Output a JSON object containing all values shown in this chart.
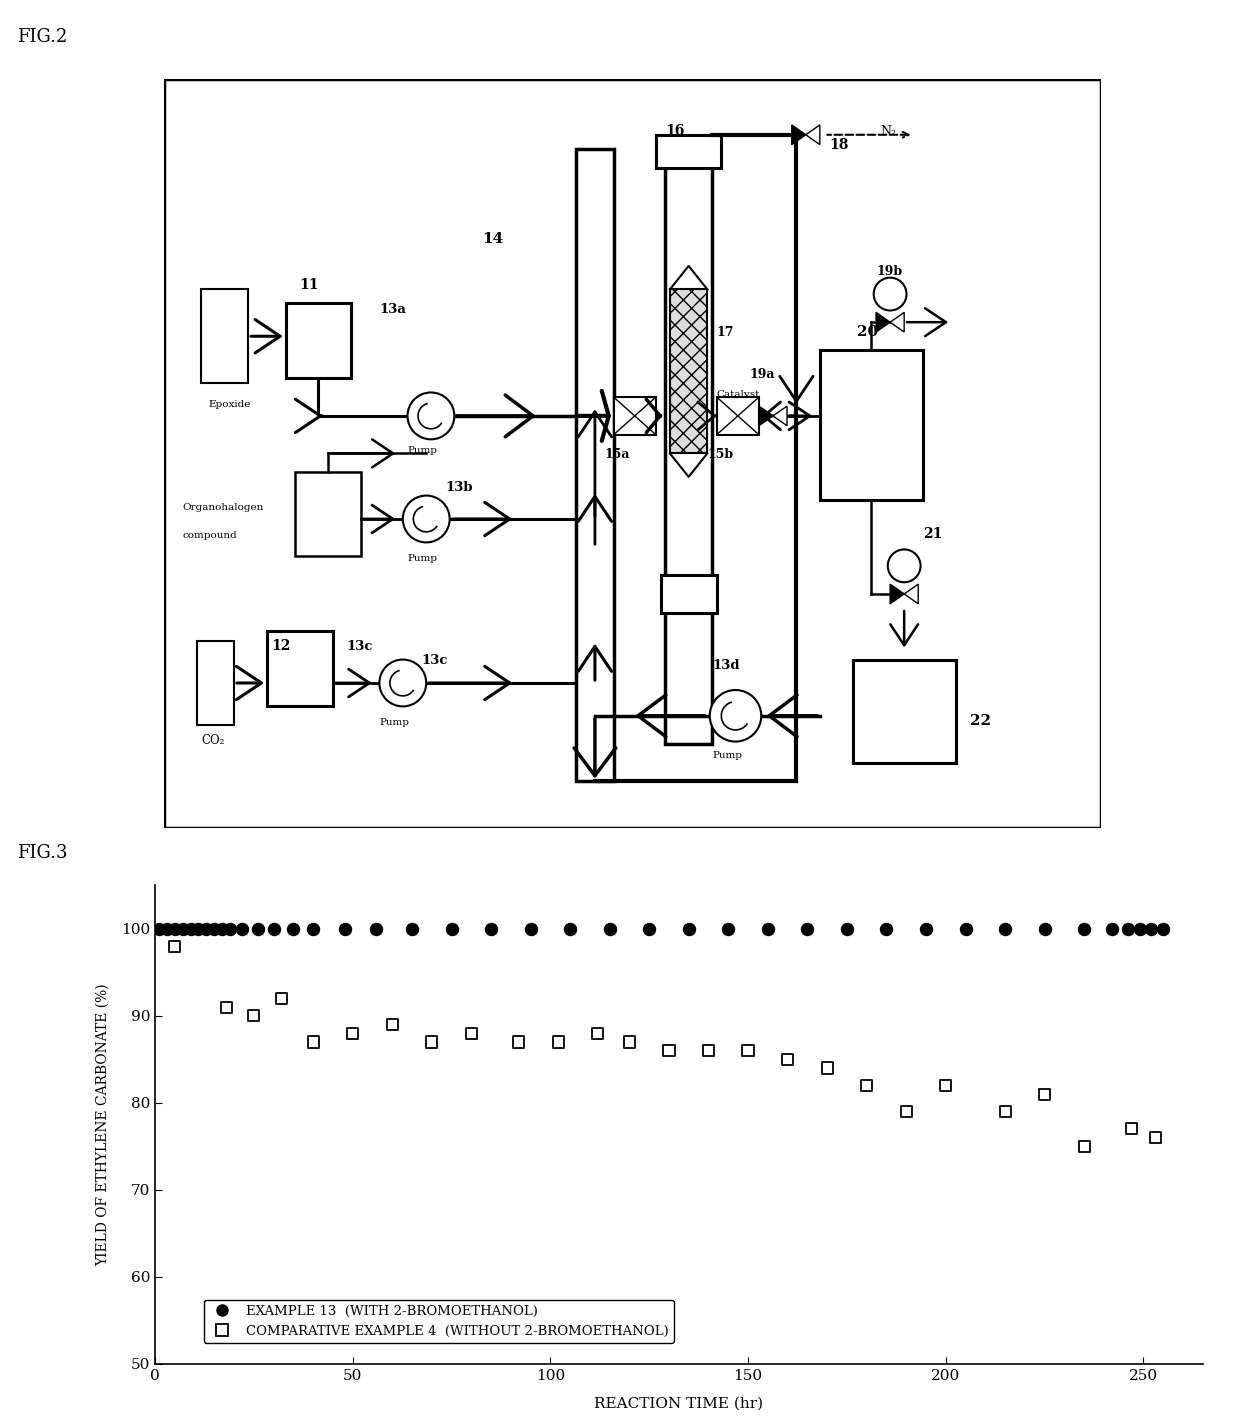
{
  "fig2_title": "FIG.2",
  "fig3_title": "FIG.3",
  "example13_x": [
    1,
    3,
    5,
    7,
    9,
    11,
    13,
    15,
    17,
    19,
    22,
    26,
    30,
    35,
    40,
    48,
    56,
    65,
    75,
    85,
    95,
    105,
    115,
    125,
    135,
    145,
    155,
    165,
    175,
    185,
    195,
    205,
    215,
    225,
    235,
    242,
    246,
    249,
    252,
    255
  ],
  "example13_y": [
    100,
    100,
    100,
    100,
    100,
    100,
    100,
    100,
    100,
    100,
    100,
    100,
    100,
    100,
    100,
    100,
    100,
    100,
    100,
    100,
    100,
    100,
    100,
    100,
    100,
    100,
    100,
    100,
    100,
    100,
    100,
    100,
    100,
    100,
    100,
    100,
    100,
    100,
    100,
    100
  ],
  "comp4_x": [
    5,
    18,
    25,
    32,
    40,
    50,
    60,
    70,
    80,
    92,
    102,
    112,
    120,
    130,
    140,
    150,
    160,
    170,
    180,
    190,
    200,
    215,
    225,
    235,
    247,
    253
  ],
  "comp4_y": [
    98,
    91,
    90,
    92,
    87,
    88,
    89,
    87,
    88,
    87,
    87,
    88,
    87,
    86,
    86,
    86,
    85,
    84,
    82,
    79,
    82,
    79,
    81,
    75,
    77,
    76
  ],
  "xlabel": "REACTION TIME (hr)",
  "ylabel": "YIELD OF ETHYLENE CARBONATE (%)",
  "legend1": "EXAMPLE 13  (WITH 2-BROMOETHANOL)",
  "legend2": "COMPARATIVE EXAMPLE 4  (WITHOUT 2-BROMOETHANOL)",
  "ylim": [
    50,
    105
  ],
  "xlim": [
    0,
    265
  ],
  "yticks": [
    50,
    60,
    70,
    80,
    90,
    100
  ],
  "xticks": [
    0,
    50,
    100,
    150,
    200,
    250
  ],
  "bg_color": "#ffffff"
}
